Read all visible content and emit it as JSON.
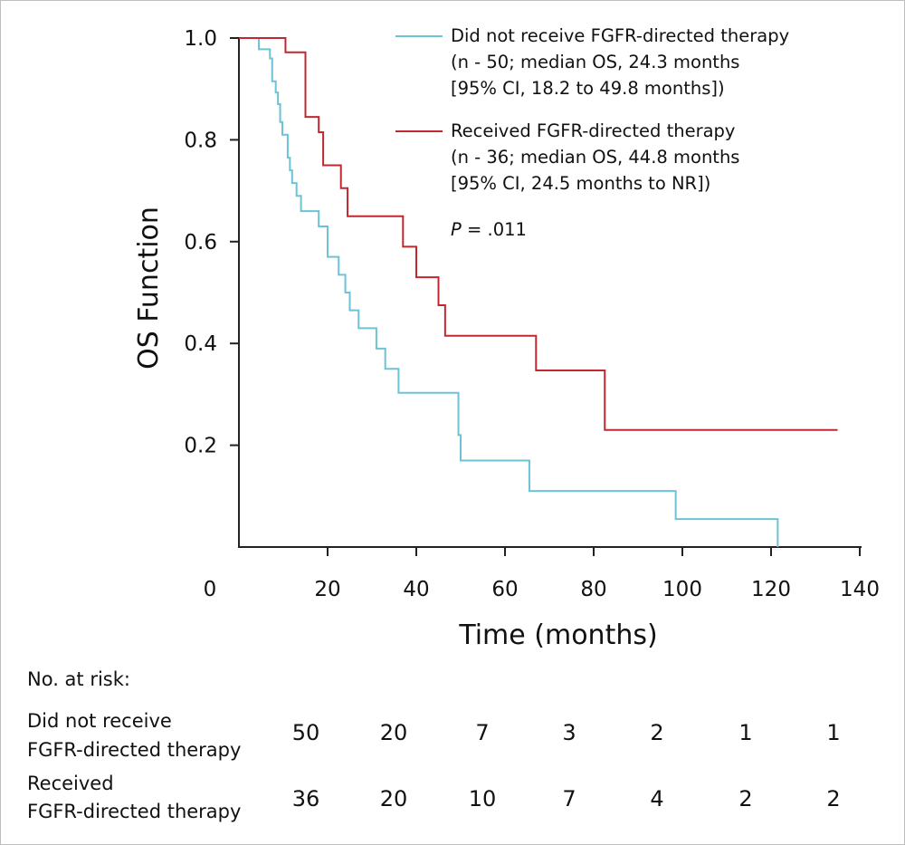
{
  "chart_data": {
    "type": "line",
    "subtype": "kaplan-meier step",
    "xlabel": "Time (months)",
    "ylabel": "OS Function",
    "xlim": [
      0,
      140
    ],
    "ylim": [
      0,
      1.0
    ],
    "x_ticks": [
      "0",
      "20",
      "40",
      "60",
      "80",
      "100",
      "120",
      "140"
    ],
    "y_ticks": [
      "1.0",
      "0.8",
      "0.6",
      "0.4",
      "0.2"
    ],
    "grid": false,
    "legend_position": "top-right",
    "series": [
      {
        "name": "Did not receive FGFR-directed therapy",
        "legend_lines": [
          "Did not receive FGFR-directed therapy",
          "(n - 50; median OS, 24.3 months",
          "[95% CI, 18.2 to 49.8 months])"
        ],
        "color": "#6cc3d5",
        "points": [
          [
            0,
            1.0
          ],
          [
            4.5,
            0.978
          ],
          [
            7,
            0.96
          ],
          [
            7.5,
            0.915
          ],
          [
            8.3,
            0.893
          ],
          [
            8.8,
            0.87
          ],
          [
            9.3,
            0.835
          ],
          [
            9.8,
            0.81
          ],
          [
            11,
            0.765
          ],
          [
            11.5,
            0.74
          ],
          [
            12,
            0.715
          ],
          [
            13,
            0.69
          ],
          [
            14,
            0.66
          ],
          [
            18,
            0.63
          ],
          [
            20,
            0.57
          ],
          [
            22.5,
            0.535
          ],
          [
            24,
            0.5
          ],
          [
            25,
            0.465
          ],
          [
            27,
            0.43
          ],
          [
            31,
            0.39
          ],
          [
            33,
            0.35
          ],
          [
            36,
            0.303
          ],
          [
            49.5,
            0.22
          ],
          [
            50,
            0.17
          ],
          [
            65.5,
            0.11
          ],
          [
            98.5,
            0.055
          ],
          [
            121.5,
            0.0
          ]
        ]
      },
      {
        "name": "Received FGFR-directed therapy",
        "legend_lines": [
          "Received FGFR-directed therapy",
          "(n - 36; median OS, 44.8 months",
          "[95% CI, 24.5 months to NR])"
        ],
        "color": "#c0282f",
        "points": [
          [
            0,
            1.0
          ],
          [
            10.5,
            0.972
          ],
          [
            15,
            0.845
          ],
          [
            18,
            0.815
          ],
          [
            19,
            0.75
          ],
          [
            23,
            0.705
          ],
          [
            24.5,
            0.65
          ],
          [
            37,
            0.59
          ],
          [
            40,
            0.53
          ],
          [
            45,
            0.475
          ],
          [
            46.5,
            0.415
          ],
          [
            67,
            0.347
          ],
          [
            82.5,
            0.23
          ],
          [
            135,
            0.23
          ]
        ]
      }
    ],
    "annotation": {
      "italic": "P",
      "text": " = .011"
    },
    "risk_table": {
      "title": "No. at risk:",
      "rows": [
        {
          "label_lines": [
            "Did not receive",
            "FGFR-directed therapy"
          ],
          "values": [
            "50",
            "20",
            "7",
            "3",
            "2",
            "1",
            "1"
          ]
        },
        {
          "label_lines": [
            "Received",
            "FGFR-directed therapy"
          ],
          "values": [
            "36",
            "20",
            "10",
            "7",
            "4",
            "2",
            "2"
          ]
        }
      ]
    }
  }
}
